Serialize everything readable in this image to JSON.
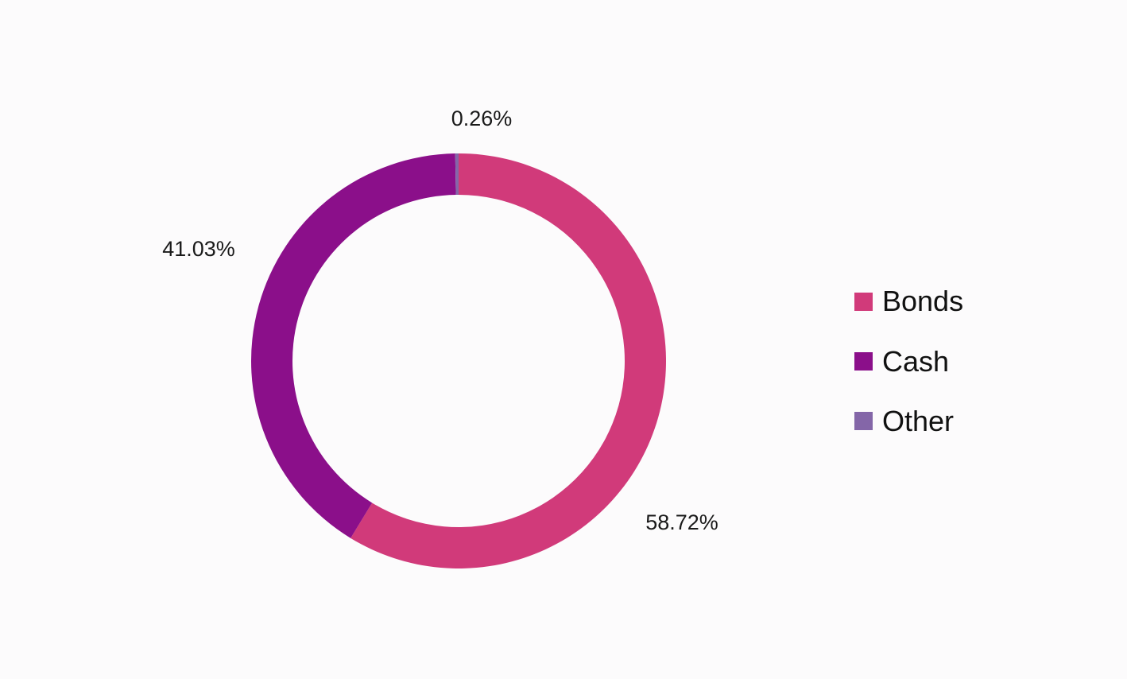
{
  "chart_data": {
    "type": "pie",
    "variant": "donut",
    "categories": [
      "Bonds",
      "Cash",
      "Other"
    ],
    "values": [
      58.72,
      41.03,
      0.26
    ],
    "labels": [
      "58.72%",
      "41.03%",
      "0.26%"
    ],
    "colors": [
      "#d13a7a",
      "#8b0f8a",
      "#8466a8"
    ],
    "legend": {
      "position": "right",
      "items": [
        "Bonds",
        "Cash",
        "Other"
      ]
    },
    "title": ""
  }
}
